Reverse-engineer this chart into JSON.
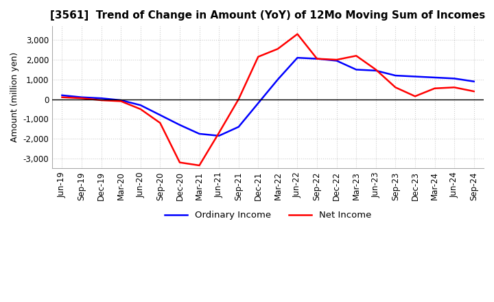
{
  "title": "[3561]  Trend of Change in Amount (YoY) of 12Mo Moving Sum of Incomes",
  "ylabel": "Amount (million yen)",
  "ylim": [
    -3500,
    3700
  ],
  "yticks": [
    -3000,
    -2000,
    -1000,
    0,
    1000,
    2000,
    3000
  ],
  "x_labels": [
    "Jun-19",
    "Sep-19",
    "Dec-19",
    "Mar-20",
    "Jun-20",
    "Sep-20",
    "Dec-20",
    "Mar-21",
    "Jun-21",
    "Sep-21",
    "Dec-21",
    "Mar-22",
    "Jun-22",
    "Sep-22",
    "Dec-22",
    "Mar-23",
    "Jun-23",
    "Sep-23",
    "Dec-23",
    "Mar-24",
    "Jun-24",
    "Sep-24"
  ],
  "ordinary_income": [
    200,
    100,
    50,
    -50,
    -300,
    -800,
    -1300,
    -1750,
    -1850,
    -1400,
    -200,
    1000,
    2100,
    2050,
    1950,
    1500,
    1450,
    1200,
    1150,
    1100,
    1050,
    900
  ],
  "net_income": [
    100,
    50,
    -50,
    -100,
    -500,
    -1200,
    -3200,
    -3350,
    -1700,
    0,
    2150,
    2550,
    3300,
    2050,
    2000,
    2200,
    1500,
    600,
    150,
    550,
    600,
    400
  ],
  "ordinary_color": "#0000ff",
  "net_color": "#ff0000",
  "line_width": 1.8,
  "background_color": "#ffffff",
  "grid_color": "#cccccc",
  "grid_style": "dotted",
  "title_fontsize": 11,
  "label_fontsize": 9,
  "tick_fontsize": 8.5
}
